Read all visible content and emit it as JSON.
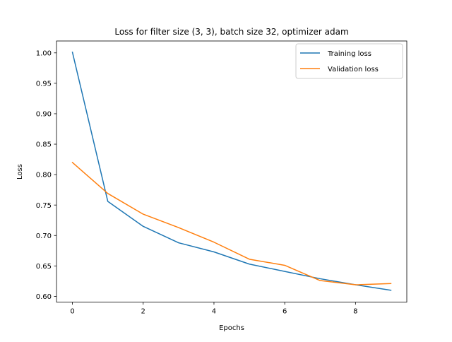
{
  "chart_data": {
    "type": "line",
    "title": "Loss for filter size (3, 3), batch size 32, optimizer adam",
    "xlabel": "Epochs",
    "ylabel": "Loss",
    "x": [
      0,
      1,
      2,
      3,
      4,
      5,
      6,
      7,
      8,
      9
    ],
    "xlim": [
      -0.45,
      9.45
    ],
    "ylim": [
      0.5905,
      1.0195
    ],
    "xticks": [
      0,
      2,
      4,
      6,
      8
    ],
    "yticks": [
      0.6,
      0.65,
      0.7,
      0.75,
      0.8,
      0.85,
      0.9,
      0.95,
      1.0
    ],
    "xtick_labels": [
      "0",
      "2",
      "4",
      "6",
      "8"
    ],
    "ytick_labels": [
      "0.60",
      "0.65",
      "0.70",
      "0.75",
      "0.80",
      "0.85",
      "0.90",
      "0.95",
      "1.00"
    ],
    "grid": false,
    "legend_position": "upper right",
    "series": [
      {
        "name": "Training loss",
        "color": "#1f77b4",
        "values": [
          1.001,
          0.756,
          0.715,
          0.688,
          0.673,
          0.653,
          0.641,
          0.629,
          0.619,
          0.61
        ]
      },
      {
        "name": "Validation loss",
        "color": "#ff7f0e",
        "values": [
          0.82,
          0.769,
          0.735,
          0.713,
          0.689,
          0.661,
          0.651,
          0.626,
          0.619,
          0.621
        ]
      }
    ]
  }
}
